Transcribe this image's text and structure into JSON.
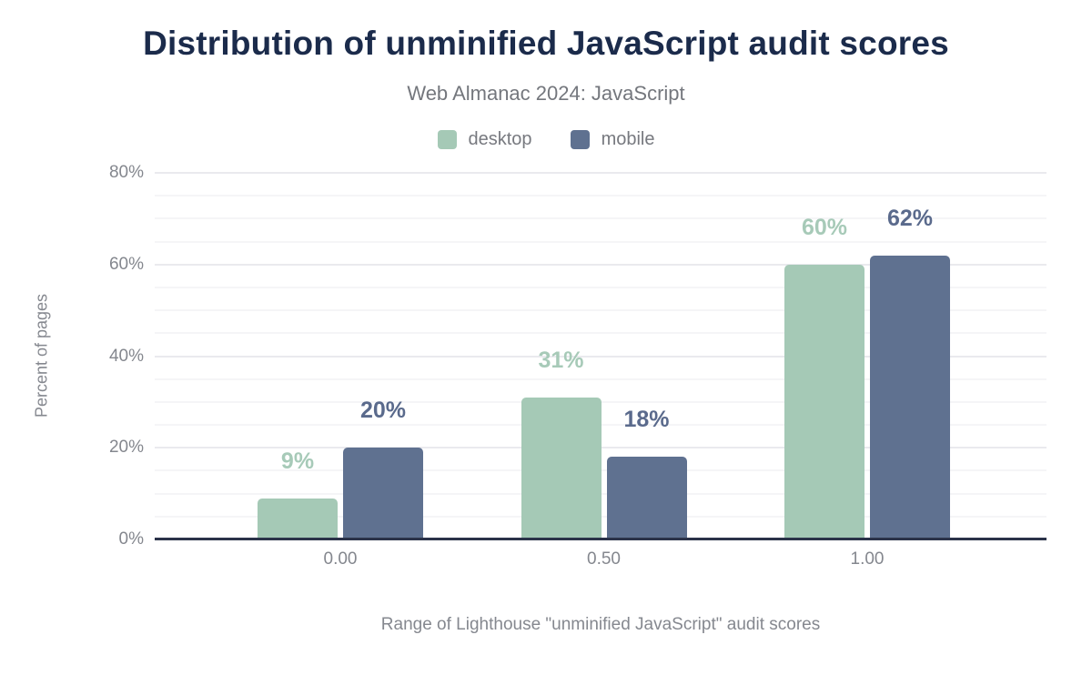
{
  "chart_data": {
    "type": "bar",
    "title": "Distribution of unminified JavaScript audit scores",
    "subtitle": "Web Almanac 2024: JavaScript",
    "categories": [
      "0.00",
      "0.50",
      "1.00"
    ],
    "series": [
      {
        "name": "desktop",
        "color": "#a5c9b6",
        "label_color": "#a7cab8",
        "values": [
          9,
          31,
          60
        ],
        "data_labels": [
          "9%",
          "31%",
          "60%"
        ]
      },
      {
        "name": "mobile",
        "color": "#5f7190",
        "label_color": "#5a6a8c",
        "values": [
          20,
          18,
          62
        ],
        "data_labels": [
          "20%",
          "18%",
          "62%"
        ]
      }
    ],
    "xlabel": "Range of Lighthouse \"unminified JavaScript\" audit scores",
    "ylabel": "Percent of pages",
    "ylim": [
      0,
      80
    ],
    "yticks": [
      "0%",
      "20%",
      "40%",
      "60%",
      "80%"
    ],
    "ytick_step": 20,
    "minor_grid_step": 5,
    "grid": "horizontal minor lines every 5%, major every 20%",
    "legend_position": "top center",
    "colors": {
      "title": "#1b2b4b",
      "subtitle": "#74777d",
      "axis_line": "#2b3349",
      "tick_label": "#84878e",
      "axis_title": "#85888f",
      "grid_minor": "#f5f5f7",
      "grid_major": "#eaeaee"
    }
  }
}
